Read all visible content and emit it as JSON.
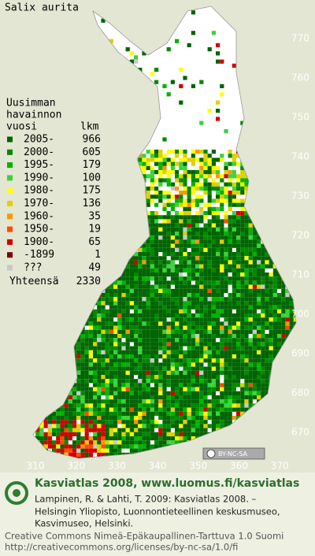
{
  "title": "Salix aurita",
  "legend": {
    "heading": [
      "Uusimman",
      "havainnon",
      "vuosi"
    ],
    "count_header": "lkm",
    "items": [
      {
        "label": "2005-",
        "count": 966,
        "color": "#006400"
      },
      {
        "label": "2000-",
        "count": 605,
        "color": "#008a00"
      },
      {
        "label": "1995-",
        "count": 179,
        "color": "#00b400"
      },
      {
        "label": "1990-",
        "count": 100,
        "color": "#3cd23c"
      },
      {
        "label": "1980-",
        "count": 175,
        "color": "#ffff00"
      },
      {
        "label": "1970-",
        "count": 136,
        "color": "#e0d000"
      },
      {
        "label": "1960-",
        "count": 35,
        "color": "#ff9600"
      },
      {
        "label": "1950-",
        "count": 19,
        "color": "#ff4b00"
      },
      {
        "label": "1900-",
        "count": 65,
        "color": "#d20000"
      },
      {
        "label": "-1899",
        "count": 1,
        "color": "#820000"
      },
      {
        "label": "???",
        "count": 49,
        "color": "#c8c8c8"
      }
    ],
    "total_label": "Yhteensä",
    "total": 2330
  },
  "y_grid": [
    770,
    760,
    750,
    740,
    730,
    720,
    710,
    700,
    690,
    680,
    670
  ],
  "x_grid": [
    310,
    320,
    330,
    340,
    350,
    360,
    370
  ],
  "badge": "BY-NC-SA",
  "footer": {
    "heading": "Kasviatlas 2008, www.luomus.fi/kasviatlas",
    "citation": [
      "Lampinen, R. & Lahti, T. 2009: Kasviatlas 2008. –",
      "Helsingin Yliopisto, Luonnontieteellinen keskusmuseo,",
      "Kasvimuseo, Helsinki."
    ],
    "license": [
      "Creative Commons Nimeä-Epäkaupallinen-Tarttuva 1.0 Suomi",
      "http://creativecommons.org/licenses/by-nc-sa/1.0/fi"
    ]
  }
}
